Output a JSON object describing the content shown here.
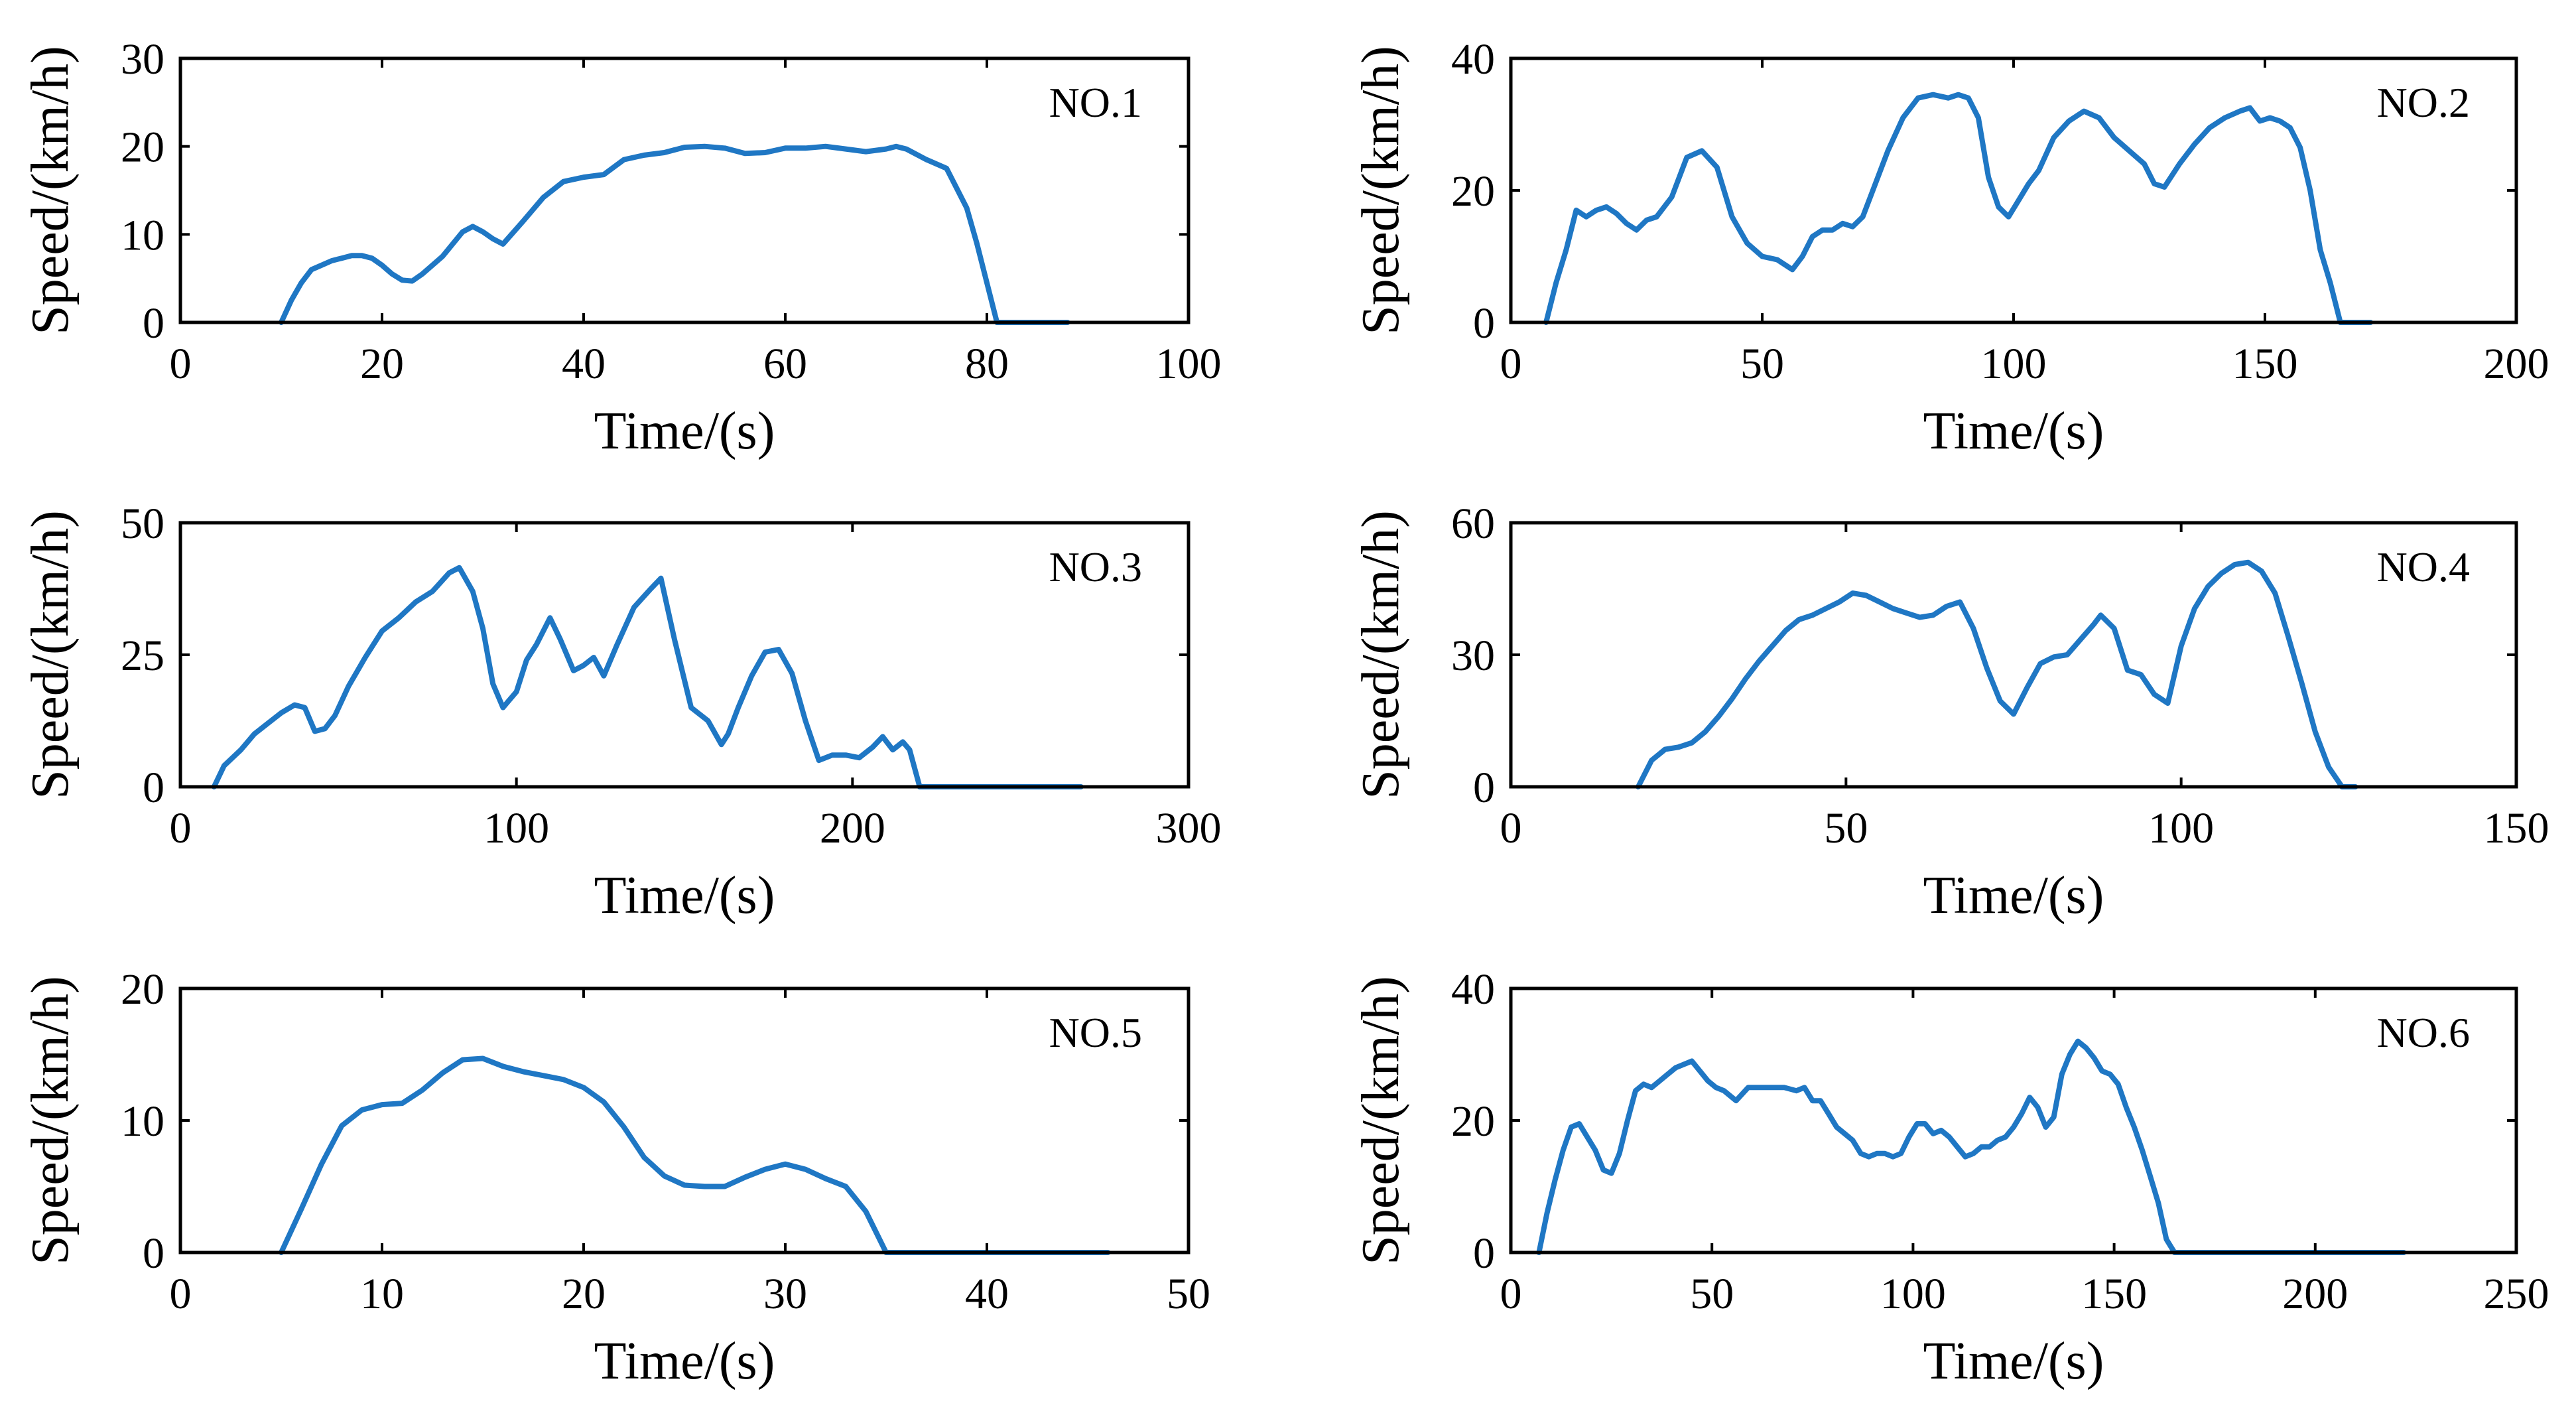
{
  "chart_data": [
    {
      "type": "line",
      "title": "NO.1",
      "xlabel": "Time/(s)",
      "ylabel": "Speed/(km/h)",
      "xlim": [
        0,
        100
      ],
      "ylim": [
        0,
        30
      ],
      "xticks": [
        0,
        20,
        40,
        60,
        80,
        100
      ],
      "yticks": [
        0,
        10,
        20,
        30
      ],
      "color": "#1f77c4",
      "x": [
        10,
        11,
        12,
        13,
        14,
        15,
        16,
        17,
        18,
        19,
        20,
        21,
        22,
        23,
        24,
        26,
        28,
        29,
        30,
        31,
        32,
        34,
        36,
        38,
        40,
        42,
        44,
        46,
        48,
        50,
        52,
        54,
        56,
        58,
        60,
        62,
        64,
        66,
        68,
        70,
        71,
        72,
        74,
        76,
        78,
        79,
        80,
        81,
        82,
        84,
        86,
        88
      ],
      "y": [
        0,
        2.5,
        4.5,
        6,
        6.5,
        7,
        7.3,
        7.6,
        7.6,
        7.3,
        6.5,
        5.5,
        4.8,
        4.7,
        5.5,
        7.5,
        10.3,
        10.9,
        10.3,
        9.5,
        8.9,
        11.5,
        14.2,
        16,
        16.5,
        16.8,
        18.5,
        19,
        19.3,
        19.9,
        20,
        19.8,
        19.2,
        19.3,
        19.8,
        19.8,
        20,
        19.7,
        19.4,
        19.7,
        20,
        19.7,
        18.5,
        17.5,
        13,
        9,
        4.5,
        0,
        0,
        0,
        0,
        0
      ]
    },
    {
      "type": "line",
      "title": "NO.2",
      "xlabel": "Time/(s)",
      "ylabel": "Speed/(km/h)",
      "xlim": [
        0,
        200
      ],
      "ylim": [
        0,
        40
      ],
      "xticks": [
        0,
        50,
        100,
        150,
        200
      ],
      "yticks": [
        0,
        20,
        40
      ],
      "color": "#1f77c4",
      "x": [
        7,
        9,
        11,
        13,
        15,
        17,
        19,
        21,
        23,
        25,
        27,
        29,
        32,
        35,
        38,
        41,
        44,
        47,
        50,
        53,
        56,
        58,
        60,
        62,
        64,
        66,
        68,
        70,
        72,
        75,
        78,
        81,
        84,
        87,
        89,
        91,
        93,
        95,
        97,
        99,
        101,
        103,
        105,
        108,
        111,
        114,
        117,
        120,
        123,
        126,
        128,
        130,
        133,
        136,
        139,
        142,
        145,
        147,
        149,
        151,
        153,
        155,
        157,
        159,
        161,
        163,
        165,
        168,
        171
      ],
      "y": [
        0,
        6,
        11,
        17,
        16,
        17,
        17.5,
        16.5,
        15,
        14,
        15.5,
        16,
        19,
        25,
        26,
        23.5,
        16,
        12,
        10,
        9.5,
        8,
        10,
        13,
        14,
        14,
        15,
        14.5,
        16,
        20,
        26,
        31,
        34,
        34.5,
        34,
        34.5,
        34,
        31,
        22,
        17.5,
        16,
        18.5,
        21,
        23,
        28,
        30.5,
        32,
        31,
        28,
        26,
        24,
        21,
        20.5,
        24,
        27,
        29.5,
        31,
        32,
        32.5,
        30.5,
        31,
        30.5,
        29.5,
        26.5,
        20,
        11,
        6,
        0,
        0,
        0
      ]
    },
    {
      "type": "line",
      "title": "NO.3",
      "xlabel": "Time/(s)",
      "ylabel": "Speed/(km/h)",
      "xlim": [
        0,
        300
      ],
      "ylim": [
        0,
        50
      ],
      "xticks": [
        0,
        100,
        200,
        300
      ],
      "yticks": [
        0,
        25,
        50
      ],
      "color": "#1f77c4",
      "x": [
        10,
        13,
        18,
        22,
        26,
        30,
        34,
        37,
        40,
        43,
        46,
        50,
        55,
        60,
        65,
        70,
        75,
        80,
        83,
        87,
        90,
        93,
        96,
        100,
        103,
        106,
        110,
        113,
        117,
        120,
        123,
        126,
        130,
        135,
        140,
        143,
        147,
        152,
        157,
        161,
        163,
        166,
        170,
        174,
        178,
        182,
        186,
        190,
        194,
        198,
        202,
        206,
        209,
        212,
        215,
        217,
        220,
        225,
        240,
        268
      ],
      "y": [
        0,
        4,
        7,
        10,
        12,
        14,
        15.5,
        15,
        10.5,
        11,
        13.5,
        19,
        24.5,
        29.5,
        32,
        35,
        37,
        40.5,
        41.5,
        37,
        30,
        19.5,
        15,
        18,
        24,
        27,
        32,
        28,
        22,
        23,
        24.5,
        21,
        27,
        34,
        37.5,
        39.5,
        28,
        15,
        12.5,
        8,
        10,
        15,
        21,
        25.5,
        26,
        21.5,
        12.5,
        5,
        6,
        6,
        5.5,
        7.5,
        9.5,
        7,
        8.5,
        7,
        0,
        0,
        0,
        0
      ]
    },
    {
      "type": "line",
      "title": "NO.4",
      "xlabel": "Time/(s)",
      "ylabel": "Speed/(km/h)",
      "xlim": [
        0,
        150
      ],
      "ylim": [
        0,
        60
      ],
      "xticks": [
        0,
        50,
        100,
        150
      ],
      "yticks": [
        0,
        30,
        60
      ],
      "color": "#1f77c4",
      "x": [
        19,
        21,
        23,
        25,
        27,
        29,
        31,
        33,
        35,
        37,
        39,
        41,
        43,
        45,
        47,
        49,
        51,
        53,
        55,
        57,
        59,
        61,
        63,
        65,
        67,
        69,
        71,
        73,
        75,
        77,
        79,
        81,
        83,
        85,
        87,
        88,
        90,
        92,
        94,
        96,
        98,
        100,
        102,
        104,
        106,
        108,
        110,
        112,
        114,
        116,
        118,
        120,
        122,
        124,
        126
      ],
      "y": [
        0,
        6,
        8.5,
        9,
        10,
        12.5,
        16,
        20,
        24.5,
        28.5,
        32,
        35.5,
        38,
        39,
        40.5,
        42,
        44,
        43.5,
        42,
        40.5,
        39.5,
        38.5,
        39,
        41,
        42,
        36,
        27,
        19.5,
        16.5,
        22.5,
        28,
        29.5,
        30,
        33.5,
        37,
        39,
        36,
        26.5,
        25.5,
        21,
        19,
        32,
        40.5,
        45.5,
        48.5,
        50.5,
        51,
        49,
        44,
        34,
        23.5,
        12.5,
        4.5,
        0,
        0
      ]
    },
    {
      "type": "line",
      "title": "NO.5",
      "xlabel": "Time/(s)",
      "ylabel": "Speed/(km/h)",
      "xlim": [
        0,
        50
      ],
      "ylim": [
        0,
        20
      ],
      "xticks": [
        0,
        10,
        20,
        30,
        40,
        50
      ],
      "yticks": [
        0,
        10,
        20
      ],
      "color": "#1f77c4",
      "x": [
        5,
        6,
        7,
        8,
        9,
        10,
        11,
        12,
        13,
        14,
        15,
        16,
        17,
        18,
        19,
        20,
        21,
        22,
        23,
        24,
        25,
        26,
        27,
        28,
        29,
        30,
        31,
        32,
        33,
        34,
        35,
        36,
        38,
        40,
        42,
        44,
        46
      ],
      "y": [
        0,
        3.3,
        6.7,
        9.6,
        10.8,
        11.2,
        11.3,
        12.3,
        13.6,
        14.6,
        14.7,
        14.1,
        13.7,
        13.4,
        13.1,
        12.5,
        11.4,
        9.5,
        7.2,
        5.8,
        5.1,
        5,
        5,
        5.7,
        6.3,
        6.7,
        6.3,
        5.6,
        5,
        3.1,
        0,
        0,
        0,
        0,
        0,
        0,
        0
      ]
    },
    {
      "type": "line",
      "title": "NO.6",
      "xlabel": "Time/(s)",
      "ylabel": "Speed/(km/h)",
      "xlim": [
        0,
        250
      ],
      "ylim": [
        0,
        40
      ],
      "xticks": [
        0,
        50,
        100,
        150,
        200,
        250
      ],
      "yticks": [
        0,
        20,
        40
      ],
      "color": "#1f77c4",
      "x": [
        7,
        9,
        11,
        13,
        15,
        17,
        19,
        21,
        23,
        25,
        27,
        29,
        31,
        33,
        35,
        37,
        39,
        41,
        43,
        45,
        47,
        49,
        51,
        53,
        56,
        59,
        62,
        65,
        68,
        71,
        73,
        75,
        77,
        79,
        81,
        83,
        85,
        87,
        89,
        91,
        93,
        95,
        97,
        99,
        101,
        103,
        105,
        107,
        109,
        111,
        113,
        115,
        117,
        119,
        121,
        123,
        125,
        127,
        129,
        131,
        133,
        135,
        137,
        139,
        141,
        143,
        145,
        147,
        149,
        151,
        153,
        155,
        157,
        159,
        161,
        163,
        165,
        170,
        185,
        200,
        222
      ],
      "y": [
        0,
        6,
        11,
        15.5,
        19,
        19.5,
        17.5,
        15.5,
        12.5,
        12,
        15,
        20,
        24.5,
        25.5,
        25,
        26,
        27,
        28,
        28.5,
        29,
        27.5,
        26,
        25,
        24.5,
        23,
        25,
        25,
        25,
        25,
        24.5,
        25,
        23,
        23,
        21,
        19,
        18,
        17,
        15,
        14.5,
        15,
        15,
        14.5,
        15,
        17.5,
        19.5,
        19.5,
        18,
        18.5,
        17.5,
        16,
        14.5,
        15,
        16,
        16,
        17,
        17.5,
        19,
        21,
        23.5,
        22,
        19,
        20.5,
        27,
        30,
        32,
        31,
        29.5,
        27.5,
        27,
        25.5,
        22,
        19,
        15.5,
        11.5,
        7.5,
        2,
        0,
        0,
        0,
        0,
        0
      ]
    }
  ]
}
